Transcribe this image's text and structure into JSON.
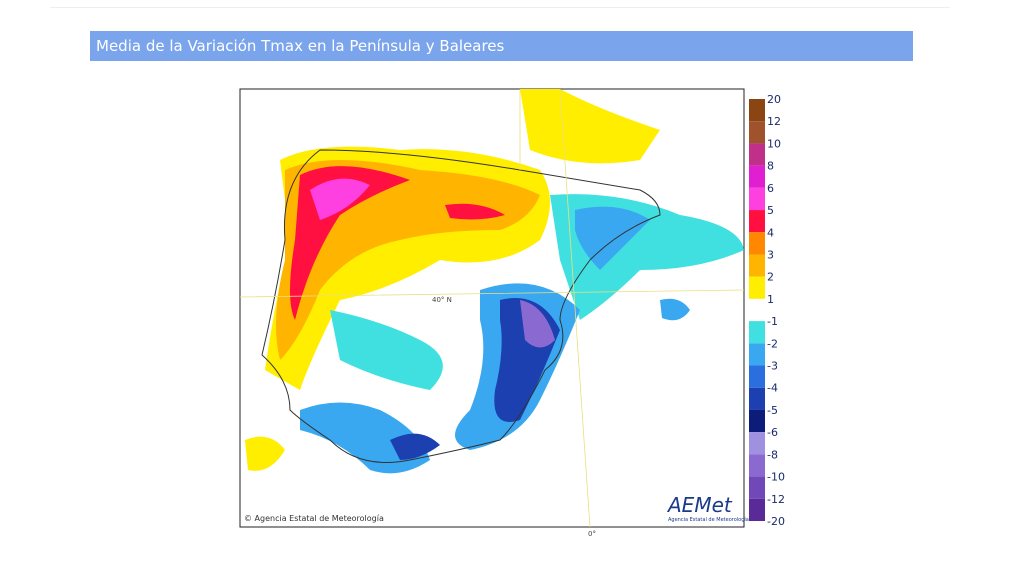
{
  "header": {
    "title": "Media de la Variación Tmax en la Península y Baleares"
  },
  "map": {
    "lat_label": "40° N",
    "lon_label": "0°",
    "copyright": "© Agencia Estatal de Meteorología",
    "logo": "AEMet",
    "logo_caption": "Agencia Estatal de Meteorología"
  },
  "legend": {
    "labels": [
      20,
      12,
      10,
      8,
      6,
      5,
      4,
      3,
      2,
      1,
      -1,
      -2,
      -3,
      -4,
      -5,
      -6,
      -8,
      -10,
      -12,
      -20
    ],
    "colors": [
      "#8b4513",
      "#a0522d",
      "#c0308a",
      "#e020d0",
      "#ff40e0",
      "#ff1040",
      "#ff8800",
      "#ffb400",
      "#ffee00",
      "#ffffff",
      "#40e0e0",
      "#3aa8f0",
      "#2a6ee0",
      "#1c40b0",
      "#0c1c78",
      "#a090e0",
      "#8a6ad0",
      "#7048b8",
      "#5a2a98"
    ]
  }
}
